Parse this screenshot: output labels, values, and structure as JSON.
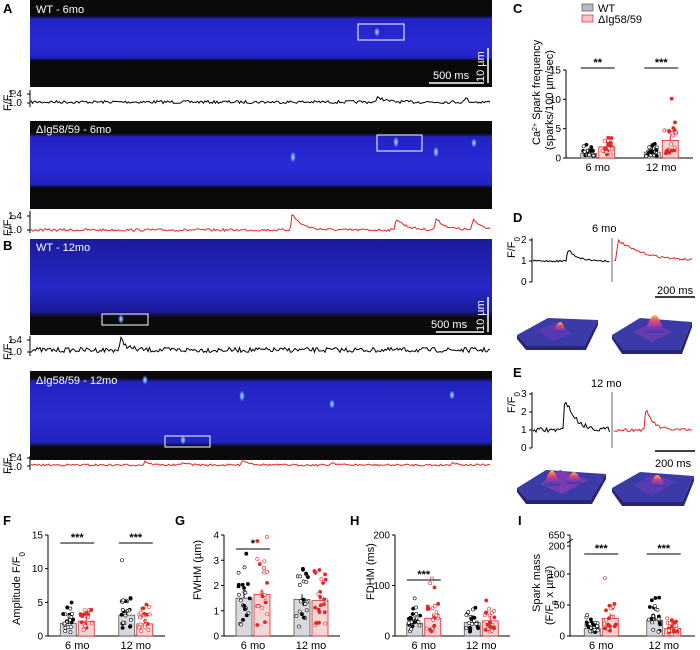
{
  "panels": {
    "A": {
      "letter": "A",
      "img1_label": "WT - 6mo",
      "img2_label": "ΔIg58/59 - 6mo",
      "scale_time": "500 ms",
      "scale_dist": "10 µm",
      "trace_ylabel": "F/F0",
      "ticks": [
        "1.4",
        "1.0"
      ]
    },
    "B": {
      "letter": "B",
      "img1_label": "WT - 12mo",
      "img2_label": "ΔIg58/59 - 12mo",
      "scale_time": "500 ms",
      "scale_dist": "10 µm",
      "trace_ylabel": "F/F0",
      "ticks": [
        "1.4",
        "1.0"
      ]
    },
    "C": {
      "letter": "C",
      "ylabel": "Ca²⁺ Spark frequency (sparks/100 µm/sec)",
      "legend_wt": "WT",
      "legend_mut": "ΔIg58/59",
      "groups": [
        "6 mo",
        "12 mo"
      ],
      "sig": [
        "**",
        "***"
      ],
      "yticks": [
        "0",
        "5",
        "10",
        "15"
      ]
    },
    "D": {
      "letter": "D",
      "title": "6 mo",
      "ylabel": "F/F0",
      "yticks": [
        "2",
        "1",
        "0"
      ],
      "scale": "200 ms"
    },
    "E": {
      "letter": "E",
      "title": "12 mo",
      "ylabel": "F/F0",
      "yticks": [
        "3",
        "2",
        "1",
        "0"
      ],
      "scale": "200 ms"
    },
    "F": {
      "letter": "F",
      "ylabel": "Amplitude F/F0",
      "yticks": [
        "0",
        "5",
        "10",
        "15"
      ],
      "groups": [
        "6 mo",
        "12 mo"
      ],
      "sig": [
        "***",
        "***"
      ]
    },
    "G": {
      "letter": "G",
      "ylabel": "FWHM (µm)",
      "yticks": [
        "0",
        "1",
        "2",
        "3",
        "4"
      ],
      "groups": [
        "6 mo",
        "12 mo"
      ],
      "sig": [
        "*"
      ]
    },
    "H": {
      "letter": "H",
      "ylabel": "FDHM (ms)",
      "yticks": [
        "0",
        "100",
        "200"
      ],
      "groups": [
        "6 mo",
        "12 mo"
      ],
      "sig": [
        "***"
      ]
    },
    "I": {
      "letter": "I",
      "ylabel": "Spark mass (F/F0 x µm³)",
      "yticks": [
        "0",
        "50",
        "100",
        "200",
        "650"
      ],
      "groups": [
        "6 mo",
        "12 mo"
      ],
      "sig": [
        "***",
        "***"
      ]
    }
  },
  "colors": {
    "wt": "#000000",
    "mutant": "#e32626",
    "image_bg": "#1a1acc",
    "dark": "#0a0a0a"
  },
  "chart_data": [
    {
      "type": "bar",
      "title": "",
      "ylabel": "Ca2+ Spark frequency (sparks/100 µm/sec)",
      "categories": [
        "6 mo",
        "12 mo"
      ],
      "series": [
        {
          "name": "WT",
          "values": [
            0.8,
            1.0
          ]
        },
        {
          "name": "ΔIg58/59",
          "values": [
            1.9,
            3.0
          ]
        }
      ],
      "ylim": [
        0,
        15
      ]
    },
    {
      "type": "bar",
      "ylabel": "Amplitude F/F0",
      "categories": [
        "6 mo",
        "12 mo"
      ],
      "series": [
        {
          "name": "WT",
          "values": [
            1.9,
            3.1
          ]
        },
        {
          "name": "ΔIg58/59",
          "values": [
            2.2,
            1.8
          ]
        }
      ],
      "ylim": [
        0,
        15
      ]
    },
    {
      "type": "bar",
      "ylabel": "FWHM (µm)",
      "categories": [
        "6 mo",
        "12 mo"
      ],
      "series": [
        {
          "name": "WT",
          "values": [
            1.5,
            1.45
          ]
        },
        {
          "name": "ΔIg58/59",
          "values": [
            1.65,
            1.4
          ]
        }
      ],
      "ylim": [
        0,
        4
      ]
    },
    {
      "type": "bar",
      "ylabel": "FDHM (ms)",
      "categories": [
        "6 mo",
        "12 mo"
      ],
      "series": [
        {
          "name": "WT",
          "values": [
            25,
            27
          ]
        },
        {
          "name": "ΔIg58/59",
          "values": [
            35,
            30
          ]
        }
      ],
      "ylim": [
        0,
        200
      ]
    },
    {
      "type": "bar",
      "ylabel": "Spark mass (F/F0 x µm3)",
      "categories": [
        "6 mo",
        "12 mo"
      ],
      "series": [
        {
          "name": "WT",
          "values": [
            12,
            25
          ]
        },
        {
          "name": "ΔIg58/59",
          "values": [
            28,
            12
          ]
        }
      ],
      "ylim": [
        0,
        650
      ]
    }
  ]
}
